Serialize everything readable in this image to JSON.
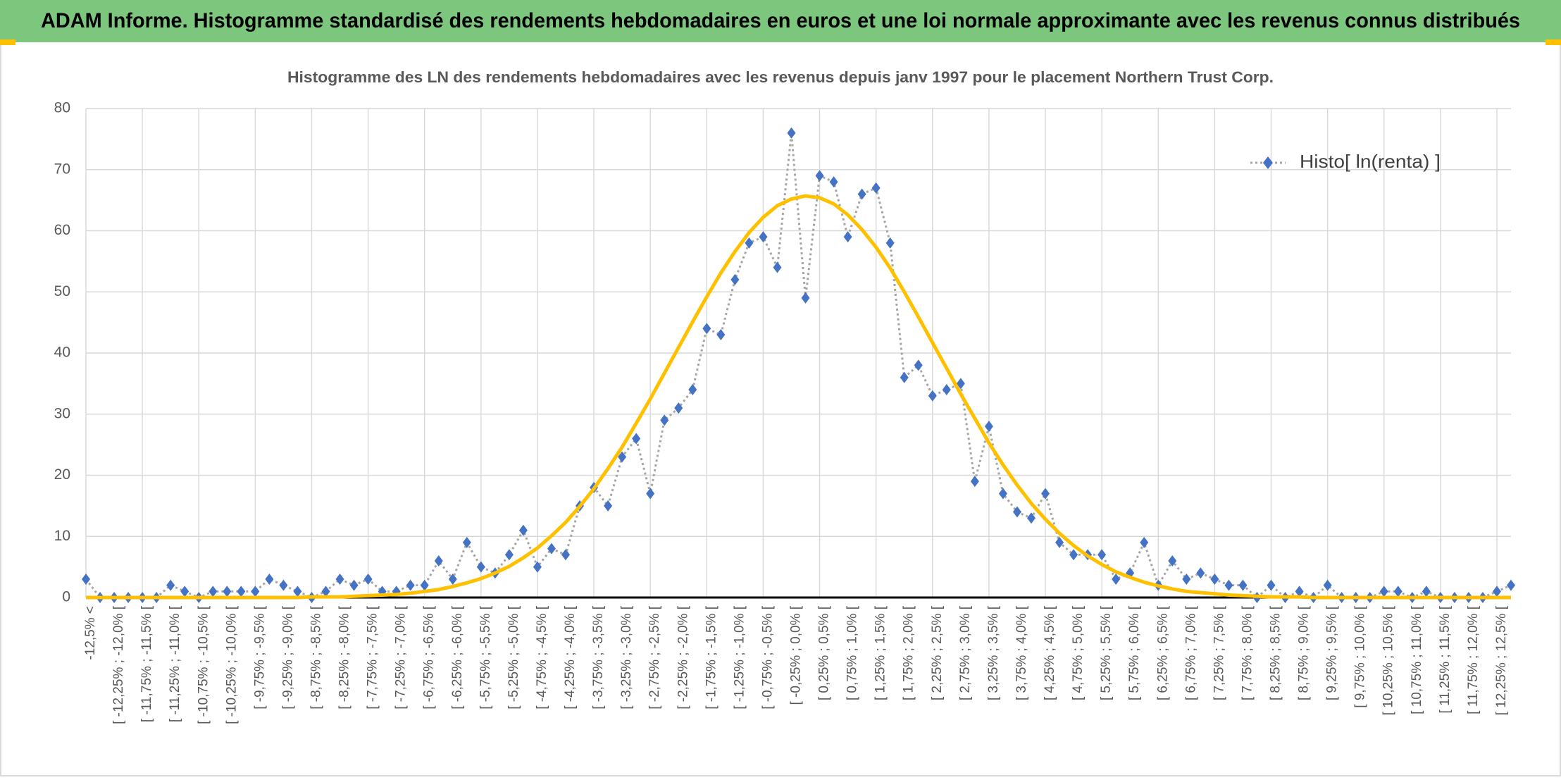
{
  "header": {
    "title": "ADAM Informe. Histogramme standardisé des rendements hebdomadaires en euros et une loi normale approximante avec les revenus connus distribués"
  },
  "chart_data": {
    "type": "line",
    "title": "Histogramme des LN des rendements hebdomadaires avec les revenus depuis janv 1997 pour le placement Northern Trust Corp.",
    "categories": [
      "-12,5% <",
      null,
      "[ -12,25% ; -12,0% [",
      null,
      "[ -11,75% ; -11,5% [",
      null,
      "[ -11,25% ; -11,0% [",
      null,
      "[ -10,75% ; -10,5% [",
      null,
      "[ -10,25% ; -10,0% [",
      null,
      "[ -9,75% ; -9,5% [",
      null,
      "[ -9,25% ; -9,0% [",
      null,
      "[ -8,75% ; -8,5% [",
      null,
      "[ -8,25% ; -8,0% [",
      null,
      "[ -7,75% ; -7,5% [",
      null,
      "[ -7,25% ; -7,0% [",
      null,
      "[ -6,75% ; -6,5% [",
      null,
      "[ -6,25% ; -6,0% [",
      null,
      "[ -5,75% ; -5,5% [",
      null,
      "[ -5,25% ; -5,0% [",
      null,
      "[ -4,75% ; -4,5% [",
      null,
      "[ -4,25% ; -4,0% [",
      null,
      "[ -3,75% ; -3,5% [",
      null,
      "[ -3,25% ; -3,0% [",
      null,
      "[ -2,75% ; -2,5% [",
      null,
      "[ -2,25% ; -2,0% [",
      null,
      "[ -1,75% ; -1,5% [",
      null,
      "[ -1,25% ; -1,0% [",
      null,
      "[ -0,75% ; -0,5% [",
      null,
      "[ -0,25% ; 0,0% [",
      null,
      "[ 0,25% ; 0,5% [",
      null,
      "[ 0,75% ; 1,0% [",
      null,
      "[ 1,25% ; 1,5% [",
      null,
      "[ 1,75% ; 2,0% [",
      null,
      "[ 2,25% ; 2,5% [",
      null,
      "[ 2,75% ; 3,0% [",
      null,
      "[ 3,25% ; 3,5% [",
      null,
      "[ 3,75% ; 4,0% [",
      null,
      "[ 4,25% ; 4,5% [",
      null,
      "[ 4,75% ; 5,0% [",
      null,
      "[ 5,25% ; 5,5% [",
      null,
      "[ 5,75% ; 6,0% [",
      null,
      "[ 6,25% ; 6,5% [",
      null,
      "[ 6,75% ; 7,0% [",
      null,
      "[ 7,25% ; 7,5% [",
      null,
      "[ 7,75% ; 8,0% [",
      null,
      "[ 8,25% ; 8,5% [",
      null,
      "[ 8,75% ; 9,0% [",
      null,
      "[ 9,25% ; 9,5% [",
      null,
      "[ 9,75% ; 10,0% [",
      null,
      "[ 10,25% ; 10,5% [",
      null,
      "[ 10,75% ; 11,0% [",
      null,
      "[ 11,25% ; 11,5% [",
      null,
      "[ 11,75% ; 12,0% [",
      null,
      "[ 12,25% ; 12,5% [",
      null
    ],
    "series": [
      {
        "name": "Histo[ ln(renta) ]",
        "color": "#4472c4",
        "line_color": "#a5a5a5",
        "line_style": "dotted",
        "marker": "diamond",
        "values": [
          3,
          0,
          0,
          0,
          0,
          0,
          2,
          1,
          0,
          1,
          1,
          1,
          1,
          3,
          2,
          1,
          0,
          1,
          3,
          2,
          3,
          1,
          1,
          2,
          2,
          6,
          3,
          9,
          5,
          4,
          7,
          11,
          5,
          8,
          7,
          15,
          18,
          15,
          23,
          26,
          17,
          29,
          31,
          34,
          44,
          43,
          52,
          58,
          59,
          54,
          76,
          49,
          69,
          68,
          59,
          66,
          67,
          58,
          36,
          38,
          33,
          34,
          35,
          19,
          28,
          17,
          14,
          13,
          17,
          9,
          7,
          7,
          7,
          3,
          4,
          9,
          2,
          6,
          3,
          4,
          3,
          2,
          2,
          0,
          2,
          0,
          1,
          0,
          2,
          0,
          0,
          0,
          1,
          1,
          0,
          1,
          0,
          0,
          0,
          0,
          1,
          2
        ]
      },
      {
        "color": "#ffc000",
        "line_style": "solid",
        "marker": "none",
        "values": [
          0,
          0,
          0,
          0,
          0,
          0,
          0,
          0,
          0,
          0,
          0,
          0,
          0,
          0,
          0,
          0,
          0.1,
          0.1,
          0.1,
          0.2,
          0.3,
          0.4,
          0.5,
          0.7,
          1.0,
          1.3,
          1.8,
          2.4,
          3.1,
          4.0,
          5.1,
          6.5,
          8.1,
          10.1,
          12.3,
          14.9,
          17.8,
          21.1,
          24.6,
          28.5,
          32.5,
          36.7,
          40.9,
          45.1,
          49.2,
          53.1,
          56.6,
          59.7,
          62.2,
          64.1,
          65.2,
          65.7,
          65.4,
          64.4,
          62.6,
          60.2,
          57.3,
          53.9,
          50.0,
          45.9,
          41.7,
          37.5,
          33.3,
          29.3,
          25.3,
          21.7,
          18.4,
          15.4,
          12.8,
          10.5,
          8.5,
          6.8,
          5.4,
          4.2,
          3.3,
          2.5,
          1.9,
          1.4,
          1.0,
          0.8,
          0.6,
          0.4,
          0.3,
          0.2,
          0.1,
          0.1,
          0.1,
          0,
          0,
          0,
          0,
          0,
          0,
          0,
          0,
          0,
          0,
          0,
          0,
          0,
          0,
          0
        ]
      }
    ],
    "ylim": [
      0,
      80
    ],
    "yticks": [
      0,
      10,
      20,
      30,
      40,
      50,
      60,
      70,
      80
    ],
    "grid": true,
    "legend": "upper right"
  }
}
